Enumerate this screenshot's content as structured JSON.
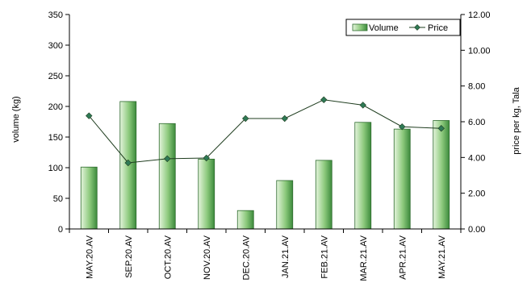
{
  "chart_data": {
    "type": "bar",
    "categories": [
      "MAY.20.AV",
      "SEP.20.AV",
      "OCT.20.AV",
      "NOV.20.AV",
      "DEC.20.AV",
      "JAN.21.AV",
      "FEB.21.AV",
      "MAR.21.AV",
      "APR.21.AV",
      "MAY.21.AV"
    ],
    "series": [
      {
        "name": "Volume",
        "chart": "bar",
        "axis": "left",
        "values": [
          101,
          208,
          172,
          114,
          30,
          79,
          112,
          174,
          163,
          177
        ]
      },
      {
        "name": "Price",
        "chart": "line",
        "axis": "right",
        "values": [
          6.33,
          3.7,
          3.93,
          3.97,
          6.18,
          6.18,
          7.23,
          6.93,
          5.72,
          5.63
        ]
      }
    ],
    "ylabel": "volume (kg)",
    "y2label": "price per kg, Tala",
    "ylim": [
      0,
      350
    ],
    "y2lim": [
      0,
      12
    ],
    "yticks": [
      "0",
      "50",
      "100",
      "150",
      "200",
      "250",
      "300",
      "350"
    ],
    "y2ticks": [
      "0.00",
      "2.00",
      "4.00",
      "6.00",
      "8.00",
      "10.00",
      "12.00"
    ],
    "legend": "top-right",
    "grid": false,
    "colors": {
      "bar_light": "#e4f4dc",
      "bar_dark": "#3c8a3c",
      "bar_edge": "#2e6b2e",
      "line": "#1f3d1f",
      "marker": "#2f7a56"
    }
  }
}
